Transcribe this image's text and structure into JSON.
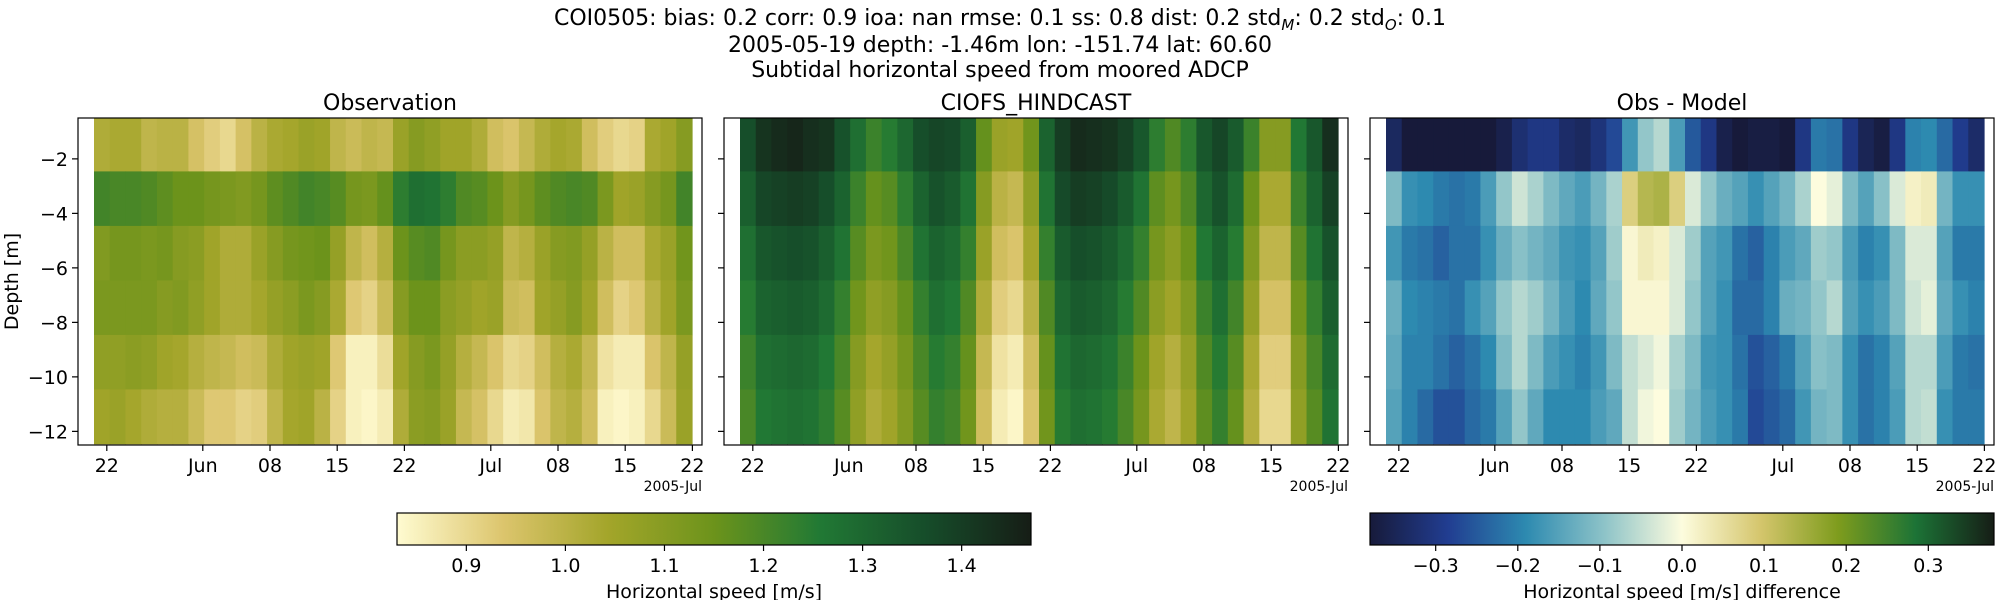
{
  "header": {
    "line1_parts": [
      {
        "t": "COI0505: bias: 0.2  corr: 0.9  ioa: nan  rmse: 0.1  ss: 0.8  dist: 0.2  std"
      },
      {
        "t": "M",
        "sub": true
      },
      {
        "t": ": 0.2  std"
      },
      {
        "t": "O",
        "sub": true
      },
      {
        "t": ": 0.1"
      }
    ],
    "line2": "2005-05-19 depth: -1.46m lon: -151.74 lat: 60.60",
    "line3": "Subtidal horizontal speed from moored ADCP"
  },
  "chart_data": [
    {
      "type": "heatmap",
      "title": "Observation",
      "ylabel": "Depth [m]",
      "yticks": [
        -2,
        -4,
        -6,
        -8,
        -10,
        -12
      ],
      "ylim": [
        -12.5,
        -0.5
      ],
      "xlim": [
        "2005-05-19",
        "2005-07-23"
      ],
      "xticks": [
        {
          "date": "2005-05-22",
          "label": "22"
        },
        {
          "date": "2005-06-01",
          "label": "Jun"
        },
        {
          "date": "2005-06-08",
          "label": "08"
        },
        {
          "date": "2005-06-15",
          "label": "15"
        },
        {
          "date": "2005-06-22",
          "label": "22"
        },
        {
          "date": "2005-07-01",
          "label": "Jul"
        },
        {
          "date": "2005-07-08",
          "label": "08"
        },
        {
          "date": "2005-07-15",
          "label": "15"
        },
        {
          "date": "2005-07-22",
          "label": "22"
        }
      ],
      "x_offset_label": "2005-Jul",
      "depth_bins": [
        -1.46,
        -3.46,
        -5.46,
        -7.46,
        -9.46,
        -11.46
      ],
      "colormap": "speed",
      "clim": [
        0.83,
        1.47
      ],
      "series": [
        {
          "depth": -1.46,
          "values": [
            1.02,
            1.03,
            1.03,
            0.99,
            1.0,
            1.0,
            0.95,
            0.92,
            0.9,
            0.95,
            1.0,
            1.03,
            1.04,
            1.06,
            1.05,
            0.99,
            0.97,
            0.99,
            0.98,
            1.06,
            1.1,
            1.08,
            1.05,
            1.05,
            1.02,
            0.96,
            0.94,
            0.98,
            1.02,
            1.04,
            1.03,
            0.96,
            0.92,
            0.9,
            0.91,
            1.03,
            1.05,
            1.1
          ]
        },
        {
          "depth": -3.46,
          "values": [
            1.21,
            1.2,
            1.2,
            1.19,
            1.17,
            1.15,
            1.15,
            1.13,
            1.12,
            1.11,
            1.13,
            1.17,
            1.19,
            1.21,
            1.2,
            1.18,
            1.13,
            1.12,
            1.16,
            1.24,
            1.28,
            1.27,
            1.24,
            1.19,
            1.18,
            1.15,
            1.1,
            1.13,
            1.17,
            1.19,
            1.2,
            1.19,
            1.12,
            1.05,
            1.06,
            1.1,
            1.13,
            1.21
          ]
        },
        {
          "depth": -5.46,
          "values": [
            1.11,
            1.13,
            1.13,
            1.12,
            1.13,
            1.1,
            1.09,
            1.05,
            1.02,
            1.02,
            1.06,
            1.1,
            1.13,
            1.14,
            1.15,
            1.07,
            0.99,
            0.96,
            1.01,
            1.15,
            1.18,
            1.19,
            1.13,
            1.09,
            1.09,
            1.07,
            0.99,
            1.01,
            1.06,
            1.1,
            1.11,
            1.07,
            1.0,
            0.96,
            0.96,
            1.03,
            1.06,
            1.14
          ]
        },
        {
          "depth": -7.46,
          "values": [
            1.12,
            1.12,
            1.12,
            1.12,
            1.1,
            1.11,
            1.08,
            1.05,
            1.02,
            1.02,
            1.04,
            1.07,
            1.09,
            1.12,
            1.1,
            1.03,
            0.93,
            0.91,
            0.97,
            1.1,
            1.15,
            1.15,
            1.09,
            1.07,
            1.05,
            1.06,
            0.97,
            0.96,
            1.05,
            1.07,
            1.1,
            1.05,
            0.96,
            0.91,
            0.93,
            1.0,
            1.05,
            1.12
          ]
        },
        {
          "depth": -9.46,
          "values": [
            1.08,
            1.08,
            1.09,
            1.08,
            1.05,
            1.04,
            1.01,
            0.99,
            0.98,
            0.96,
            0.97,
            1.02,
            1.05,
            1.06,
            1.05,
            0.93,
            0.85,
            0.85,
            0.89,
            1.05,
            1.1,
            1.12,
            1.07,
            1.01,
            0.98,
            0.94,
            0.9,
            0.91,
            0.96,
            1.01,
            1.03,
            0.98,
            0.88,
            0.86,
            0.86,
            0.94,
            0.99,
            1.07
          ]
        },
        {
          "depth": -11.46,
          "values": [
            1.05,
            1.06,
            1.04,
            1.02,
            1.01,
            1.01,
            0.97,
            0.93,
            0.93,
            0.91,
            0.92,
            0.99,
            1.04,
            1.05,
            1.0,
            0.91,
            0.85,
            0.84,
            0.86,
            1.02,
            1.09,
            1.1,
            1.06,
            0.98,
            0.95,
            0.9,
            0.86,
            0.87,
            0.94,
            0.99,
            1.01,
            0.96,
            0.85,
            0.84,
            0.85,
            0.9,
            0.97,
            1.06
          ]
        }
      ]
    },
    {
      "type": "heatmap",
      "title": "CIOFS_HINDCAST",
      "yticks": [
        -2,
        -4,
        -6,
        -8,
        -10,
        -12
      ],
      "ylim": [
        -12.5,
        -0.5
      ],
      "xlim": [
        "2005-05-19",
        "2005-07-23"
      ],
      "x_offset_label": "2005-Jul",
      "colormap": "speed",
      "clim": [
        0.83,
        1.47
      ],
      "series": [
        {
          "depth": -1.46,
          "values": [
            1.36,
            1.42,
            1.44,
            1.45,
            1.43,
            1.42,
            1.35,
            1.28,
            1.22,
            1.25,
            1.3,
            1.36,
            1.38,
            1.37,
            1.32,
            1.16,
            1.06,
            1.05,
            1.14,
            1.31,
            1.4,
            1.44,
            1.43,
            1.42,
            1.39,
            1.34,
            1.24,
            1.19,
            1.24,
            1.34,
            1.38,
            1.33,
            1.22,
            1.1,
            1.1,
            1.26,
            1.34,
            1.43
          ]
        },
        {
          "depth": -3.46,
          "values": [
            1.32,
            1.38,
            1.39,
            1.4,
            1.39,
            1.36,
            1.31,
            1.22,
            1.16,
            1.18,
            1.24,
            1.31,
            1.35,
            1.33,
            1.27,
            1.1,
            1.0,
            0.98,
            1.08,
            1.27,
            1.37,
            1.4,
            1.39,
            1.37,
            1.33,
            1.27,
            1.17,
            1.13,
            1.19,
            1.3,
            1.35,
            1.29,
            1.15,
            1.03,
            1.03,
            1.22,
            1.31,
            1.39
          ]
        },
        {
          "depth": -5.46,
          "values": [
            1.28,
            1.34,
            1.35,
            1.36,
            1.35,
            1.32,
            1.27,
            1.18,
            1.12,
            1.14,
            1.2,
            1.27,
            1.31,
            1.29,
            1.23,
            1.06,
            0.96,
            0.94,
            1.04,
            1.23,
            1.33,
            1.36,
            1.35,
            1.33,
            1.29,
            1.23,
            1.13,
            1.09,
            1.15,
            1.26,
            1.31,
            1.25,
            1.11,
            0.99,
            0.99,
            1.18,
            1.27,
            1.35
          ]
        },
        {
          "depth": -7.46,
          "values": [
            1.25,
            1.31,
            1.32,
            1.33,
            1.32,
            1.29,
            1.23,
            1.14,
            1.08,
            1.1,
            1.16,
            1.23,
            1.28,
            1.26,
            1.19,
            1.02,
            0.92,
            0.9,
            1.0,
            1.19,
            1.3,
            1.33,
            1.32,
            1.3,
            1.25,
            1.19,
            1.09,
            1.05,
            1.11,
            1.22,
            1.28,
            1.21,
            1.07,
            0.95,
            0.95,
            1.14,
            1.23,
            1.32
          ]
        },
        {
          "depth": -9.46,
          "values": [
            1.22,
            1.28,
            1.29,
            1.3,
            1.29,
            1.26,
            1.2,
            1.1,
            1.04,
            1.07,
            1.13,
            1.2,
            1.25,
            1.23,
            1.16,
            0.98,
            0.88,
            0.86,
            0.96,
            1.16,
            1.27,
            1.3,
            1.29,
            1.27,
            1.22,
            1.15,
            1.05,
            1.01,
            1.07,
            1.19,
            1.25,
            1.18,
            1.03,
            0.92,
            0.92,
            1.1,
            1.2,
            1.29
          ]
        },
        {
          "depth": -11.46,
          "values": [
            1.2,
            1.26,
            1.27,
            1.28,
            1.27,
            1.24,
            1.18,
            1.08,
            1.02,
            1.05,
            1.11,
            1.18,
            1.23,
            1.21,
            1.14,
            0.96,
            0.86,
            0.84,
            0.94,
            1.14,
            1.25,
            1.28,
            1.27,
            1.25,
            1.2,
            1.13,
            1.03,
            0.99,
            1.05,
            1.17,
            1.23,
            1.16,
            1.01,
            0.9,
            0.9,
            1.08,
            1.18,
            1.27
          ]
        }
      ]
    },
    {
      "type": "heatmap",
      "title": "Obs - Model",
      "yticks": [
        -2,
        -4,
        -6,
        -8,
        -10,
        -12
      ],
      "ylim": [
        -12.5,
        -0.5
      ],
      "xlim": [
        "2005-05-19",
        "2005-07-23"
      ],
      "x_offset_label": "2005-Jul",
      "colormap": "diff",
      "clim": [
        -0.38,
        0.38
      ],
      "series": [
        {
          "depth": -1.46,
          "values": [
            -0.34,
            -0.39,
            -0.41,
            -0.46,
            -0.43,
            -0.42,
            -0.4,
            -0.36,
            -0.32,
            -0.3,
            -0.3,
            -0.33,
            -0.34,
            -0.31,
            -0.27,
            -0.17,
            -0.09,
            -0.06,
            -0.16,
            -0.25,
            -0.3,
            -0.36,
            -0.38,
            -0.37,
            -0.37,
            -0.38,
            -0.3,
            -0.21,
            -0.22,
            -0.3,
            -0.35,
            -0.37,
            -0.3,
            -0.2,
            -0.19,
            -0.23,
            -0.29,
            -0.33
          ]
        },
        {
          "depth": -3.46,
          "values": [
            -0.11,
            -0.18,
            -0.19,
            -0.21,
            -0.22,
            -0.21,
            -0.16,
            -0.09,
            -0.04,
            -0.07,
            -0.11,
            -0.14,
            -0.16,
            -0.12,
            -0.07,
            0.08,
            0.13,
            0.14,
            0.08,
            -0.03,
            -0.09,
            -0.13,
            -0.15,
            -0.18,
            -0.15,
            -0.12,
            -0.07,
            0.0,
            -0.02,
            -0.11,
            -0.15,
            -0.1,
            -0.03,
            0.02,
            0.03,
            -0.12,
            -0.18,
            -0.18
          ]
        },
        {
          "depth": -5.46,
          "values": [
            -0.17,
            -0.21,
            -0.22,
            -0.24,
            -0.22,
            -0.22,
            -0.18,
            -0.13,
            -0.1,
            -0.12,
            -0.14,
            -0.17,
            -0.18,
            -0.15,
            -0.08,
            0.01,
            0.03,
            0.02,
            -0.03,
            -0.08,
            -0.15,
            -0.17,
            -0.22,
            -0.24,
            -0.2,
            -0.16,
            -0.14,
            -0.08,
            -0.09,
            -0.16,
            -0.2,
            -0.18,
            -0.11,
            -0.03,
            -0.03,
            -0.15,
            -0.21,
            -0.21
          ]
        },
        {
          "depth": -7.46,
          "values": [
            -0.13,
            -0.19,
            -0.2,
            -0.21,
            -0.22,
            -0.18,
            -0.15,
            -0.09,
            -0.06,
            -0.08,
            -0.12,
            -0.16,
            -0.19,
            -0.14,
            -0.09,
            0.01,
            0.01,
            0.01,
            -0.03,
            -0.09,
            -0.15,
            -0.18,
            -0.23,
            -0.23,
            -0.2,
            -0.13,
            -0.12,
            -0.09,
            -0.06,
            -0.15,
            -0.18,
            -0.16,
            -0.11,
            -0.04,
            -0.02,
            -0.14,
            -0.18,
            -0.2
          ]
        },
        {
          "depth": -9.46,
          "values": [
            -0.14,
            -0.2,
            -0.2,
            -0.22,
            -0.24,
            -0.22,
            -0.19,
            -0.11,
            -0.06,
            -0.11,
            -0.16,
            -0.18,
            -0.2,
            -0.17,
            -0.11,
            -0.05,
            -0.03,
            -0.01,
            -0.07,
            -0.11,
            -0.17,
            -0.18,
            -0.22,
            -0.26,
            -0.24,
            -0.21,
            -0.15,
            -0.1,
            -0.11,
            -0.18,
            -0.22,
            -0.2,
            -0.15,
            -0.06,
            -0.06,
            -0.16,
            -0.21,
            -0.22
          ]
        },
        {
          "depth": -11.46,
          "values": [
            -0.15,
            -0.2,
            -0.23,
            -0.26,
            -0.26,
            -0.23,
            -0.21,
            -0.15,
            -0.09,
            -0.14,
            -0.19,
            -0.19,
            -0.19,
            -0.16,
            -0.14,
            -0.05,
            -0.01,
            0.0,
            -0.08,
            -0.12,
            -0.16,
            -0.18,
            -0.21,
            -0.27,
            -0.25,
            -0.23,
            -0.17,
            -0.12,
            -0.11,
            -0.18,
            -0.22,
            -0.2,
            -0.16,
            -0.06,
            -0.05,
            -0.18,
            -0.21,
            -0.21
          ]
        }
      ]
    }
  ],
  "colorbars": [
    {
      "label": "Horizontal speed [m/s]",
      "colormap": "speed",
      "clim": [
        0.83,
        1.47
      ],
      "ticks": [
        {
          "v": 0.9,
          "label": "0.9"
        },
        {
          "v": 1.0,
          "label": "1.0"
        },
        {
          "v": 1.1,
          "label": "1.1"
        },
        {
          "v": 1.2,
          "label": "1.2"
        },
        {
          "v": 1.3,
          "label": "1.3"
        },
        {
          "v": 1.4,
          "label": "1.4"
        }
      ]
    },
    {
      "label": "Horizontal speed [m/s] difference",
      "colormap": "diff",
      "clim": [
        -0.38,
        0.38
      ],
      "ticks": [
        {
          "v": -0.3,
          "label": "−0.3"
        },
        {
          "v": -0.2,
          "label": "−0.2"
        },
        {
          "v": -0.1,
          "label": "−0.1"
        },
        {
          "v": 0.0,
          "label": "0.0"
        },
        {
          "v": 0.1,
          "label": "0.1"
        },
        {
          "v": 0.2,
          "label": "0.2"
        },
        {
          "v": 0.3,
          "label": "0.3"
        }
      ]
    }
  ],
  "colormaps": {
    "speed": [
      "#fffbd1",
      "#dcc56d",
      "#a3a52a",
      "#6c931b",
      "#217934",
      "#164d2a",
      "#161d16"
    ],
    "diff": [
      "#171a3a",
      "#213d91",
      "#2d8ab0",
      "#8dc3c8",
      "#fdfcde",
      "#d5c66d",
      "#7e9c1d",
      "#1c7336",
      "#161d16"
    ]
  }
}
